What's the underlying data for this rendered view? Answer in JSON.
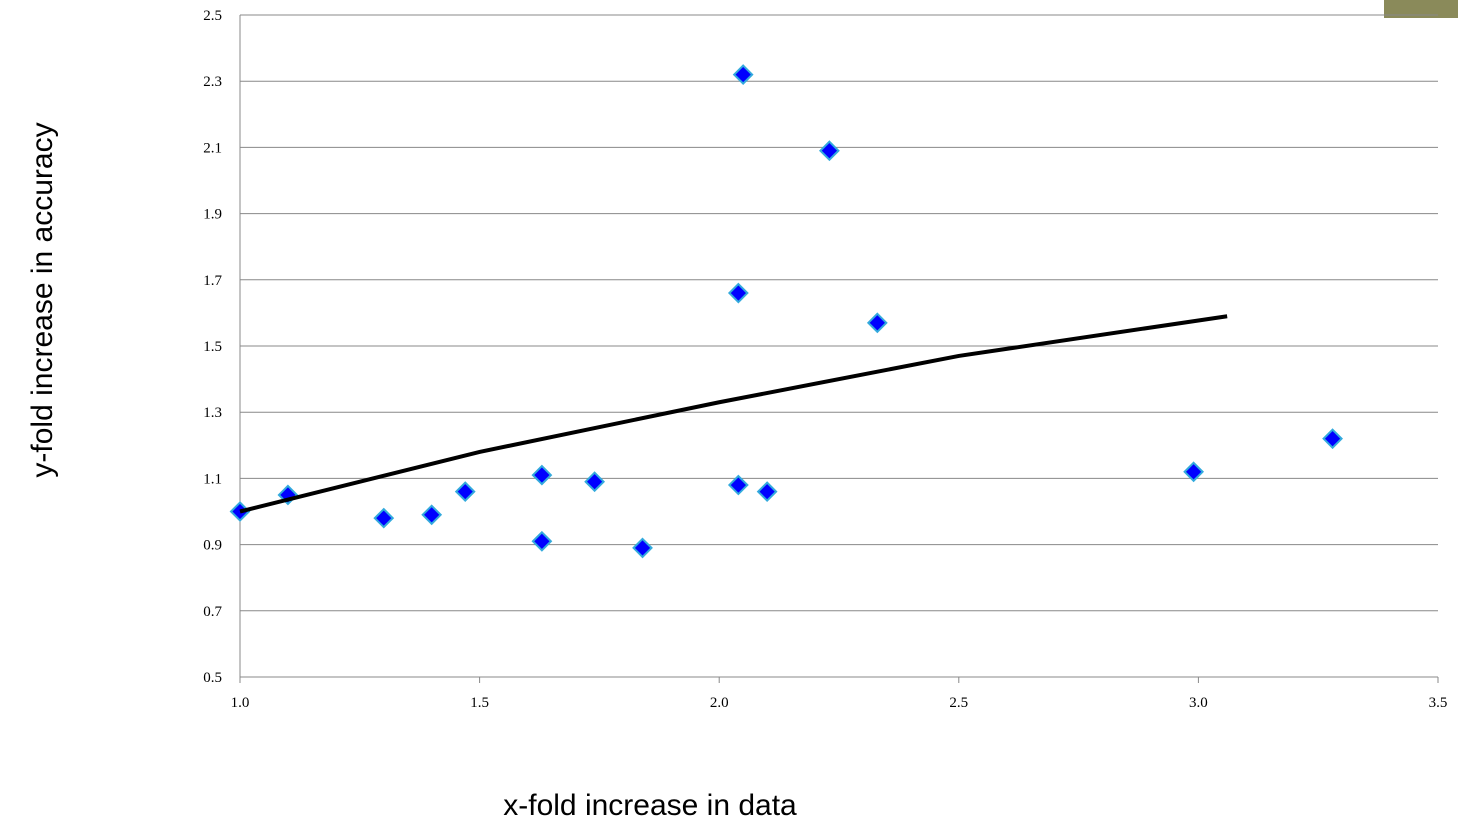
{
  "chart_data": {
    "type": "scatter",
    "x_label": "x-fold increase in data",
    "y_label": "y-fold increase in accuracy",
    "xlim": [
      1.0,
      3.5
    ],
    "xticks": [
      {
        "value": 1.0,
        "label": "1.0"
      },
      1.5,
      {
        "value": 2.0,
        "label": "2.0"
      },
      2.5,
      {
        "value": 3.0,
        "label": "3.0"
      },
      3.5
    ],
    "ylim": [
      0.5,
      2.5
    ],
    "yticks": [
      0.5,
      0.7,
      0.9,
      1.1,
      1.3,
      1.5,
      1.7,
      1.9,
      2.1,
      2.3,
      2.5
    ],
    "grid": true,
    "series": [
      {
        "type": "scatter",
        "color": "#0000ff",
        "x": [
          1.0,
          1.1,
          1.3,
          1.4,
          1.47,
          1.63,
          1.63,
          1.74,
          1.84,
          2.05,
          2.23,
          2.04,
          2.33,
          2.04,
          2.1,
          2.99,
          3.28
        ],
        "values": [
          1.0,
          1.05,
          0.98,
          0.99,
          1.06,
          1.11,
          0.91,
          1.09,
          0.89,
          2.32,
          2.09,
          1.66,
          1.57,
          1.08,
          1.06,
          1.12,
          1.22
        ]
      },
      {
        "type": "line",
        "color": "#000000",
        "x": [
          1.0,
          1.5,
          2.0,
          2.5,
          3.06
        ],
        "values": [
          1.0,
          1.18,
          1.33,
          1.47,
          1.59
        ]
      }
    ]
  }
}
